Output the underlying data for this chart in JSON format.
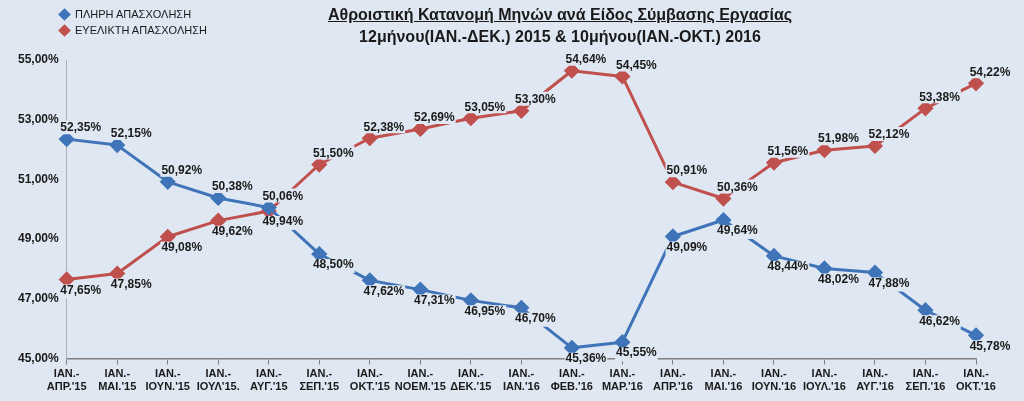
{
  "chart_data": {
    "type": "line",
    "title": "Αθροιστική Κατανομή Μηνών ανά Είδος Σύμβασης Εργασίας",
    "subtitle": "12μήνου(ΙΑΝ.-ΔΕΚ.) 2015 & 10μήνου(ΙΑΝ.-ΟΚΤ.) 2016",
    "categories": [
      "ΙΑΝ.- ΑΠΡ.'15",
      "ΙΑΝ.- ΜΑΙ.'15",
      "ΙΑΝ.- ΙΟΥΝ.'15",
      "ΙΑΝ.- ΙΟΥΛ'15.",
      "ΙΑΝ.- ΑΥΓ.'15",
      "ΙΑΝ.- ΣΕΠ.'15",
      "ΙΑΝ.- ΟΚΤ.'15",
      "ΙΑΝ.- ΝΟΕΜ.'15",
      "ΙΑΝ.- ΔΕΚ.'15",
      "ΙΑΝ.- ΙΑΝ.'16",
      "ΙΑΝ.- ΦΕΒ.'16",
      "ΙΑΝ.- ΜΑΡ.'16",
      "ΙΑΝ.- ΑΠΡ.'16",
      "ΙΑΝ.- ΜΑΙ.'16",
      "ΙΑΝ.- ΙΟΥΝ.'16",
      "ΙΑΝ.- ΙΟΥΛ.'16",
      "ΙΑΝ.- ΑΥΓ.'16",
      "ΙΑΝ.- ΣΕΠ.'16",
      "ΙΑΝ.- ΟΚΤ.'16"
    ],
    "series": [
      {
        "name": "ΠΛΗΡΗ ΑΠΑΣΧΟΛΗΣΗ",
        "color": "#3f74b8",
        "values": [
          52.35,
          52.15,
          50.92,
          50.38,
          50.06,
          48.5,
          47.62,
          47.31,
          46.95,
          46.7,
          45.36,
          45.55,
          49.09,
          49.64,
          48.44,
          48.02,
          47.88,
          46.62,
          45.78
        ],
        "value_labels": [
          "52,35%",
          "52,15%",
          "50,92%",
          "50,38%",
          "50,06%",
          "48,50%",
          "47,62%",
          "47,31%",
          "46,95%",
          "46,70%",
          "45,36%",
          "45,55%",
          "49,09%",
          "49,64%",
          "48,44%",
          "48,02%",
          "47,88%",
          "46,62%",
          "45,78%"
        ]
      },
      {
        "name": "ΕΥΕΛΙΚΤΗ ΑΠΑΣΧΟΛΗΣΗ",
        "color": "#c0504d",
        "values": [
          47.65,
          47.85,
          49.08,
          49.62,
          49.94,
          51.5,
          52.38,
          52.69,
          53.05,
          53.3,
          54.64,
          54.45,
          50.91,
          50.36,
          51.56,
          51.98,
          52.12,
          53.38,
          54.22
        ],
        "value_labels": [
          "47,65%",
          "47,85%",
          "49,08%",
          "49,62%",
          "49,94%",
          "51,50%",
          "52,38%",
          "52,69%",
          "53,05%",
          "53,30%",
          "54,64%",
          "54,45%",
          "50,91%",
          "50,36%",
          "51,56%",
          "51,98%",
          "52,12%",
          "53,38%",
          "54,22%"
        ]
      }
    ],
    "ylim": [
      45,
      55
    ],
    "yticks": [
      {
        "value": 45,
        "label": "45,00%"
      },
      {
        "value": 47,
        "label": "47,00%"
      },
      {
        "value": 49,
        "label": "49,00%"
      },
      {
        "value": 51,
        "label": "51,00%"
      },
      {
        "value": 53,
        "label": "53,00%"
      },
      {
        "value": 55,
        "label": "55,00%"
      }
    ],
    "legend": "top left",
    "marker": "diamond",
    "line_style": "solid"
  }
}
